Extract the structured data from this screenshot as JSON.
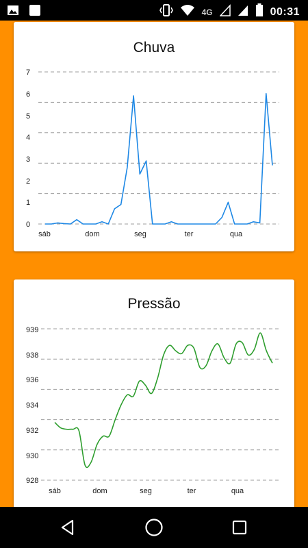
{
  "status_bar": {
    "network": "4G",
    "time": "00:31",
    "icons": [
      "image-notification-icon",
      "moon-notification-icon",
      "vibrate-icon",
      "wifi-icon",
      "signal-icon",
      "signal-icon",
      "battery-icon"
    ]
  },
  "colors": {
    "background": "#FF8F00",
    "chuva_line": "#1E88E5",
    "pressao_line": "#2E9E2E",
    "grid": "#9E9E9E"
  },
  "chart_data": [
    {
      "type": "line",
      "title": "Chuva",
      "x_tick_labels": [
        "sáb",
        "dom",
        "seg",
        "ter",
        "qua"
      ],
      "y_tick_labels": [
        "0",
        "1",
        "2",
        "3",
        "4",
        "5",
        "6",
        "7"
      ],
      "ylim": [
        0,
        7
      ],
      "grid": true,
      "series": [
        {
          "values": [
            0.0,
            0.0,
            0.05,
            0.02,
            0.0,
            0.2,
            0.0,
            0.0,
            0.0,
            0.1,
            0.0,
            0.7,
            0.9,
            2.6,
            5.9,
            2.3,
            2.9,
            0.0,
            0.0,
            0.0,
            0.1,
            0.0,
            0.0,
            0.0,
            0.0,
            0.0,
            0.0,
            0.0,
            0.3,
            1.0,
            0.0,
            0.0,
            0.0,
            0.1,
            0.05,
            6.0,
            2.7
          ]
        }
      ]
    },
    {
      "type": "line",
      "title": "Pressão",
      "x_tick_labels": [
        "sáb",
        "dom",
        "seg",
        "ter",
        "qua"
      ],
      "y_tick_labels": [
        "928",
        "930",
        "932",
        "934",
        "936",
        "938",
        "939"
      ],
      "ylim": [
        928,
        939
      ],
      "grid": true,
      "series": [
        {
          "values": [
            932.2,
            931.8,
            931.7,
            931.7,
            931.6,
            929.1,
            929.3,
            930.6,
            931.2,
            931.2,
            932.4,
            933.5,
            934.2,
            934.1,
            935.2,
            934.9,
            934.3,
            935.4,
            937.1,
            937.8,
            937.4,
            937.2,
            937.8,
            937.6,
            936.2,
            936.3,
            937.4,
            937.9,
            936.9,
            936.5,
            937.9,
            938.0,
            937.1,
            937.5,
            938.7,
            937.4,
            936.5
          ]
        }
      ]
    }
  ]
}
